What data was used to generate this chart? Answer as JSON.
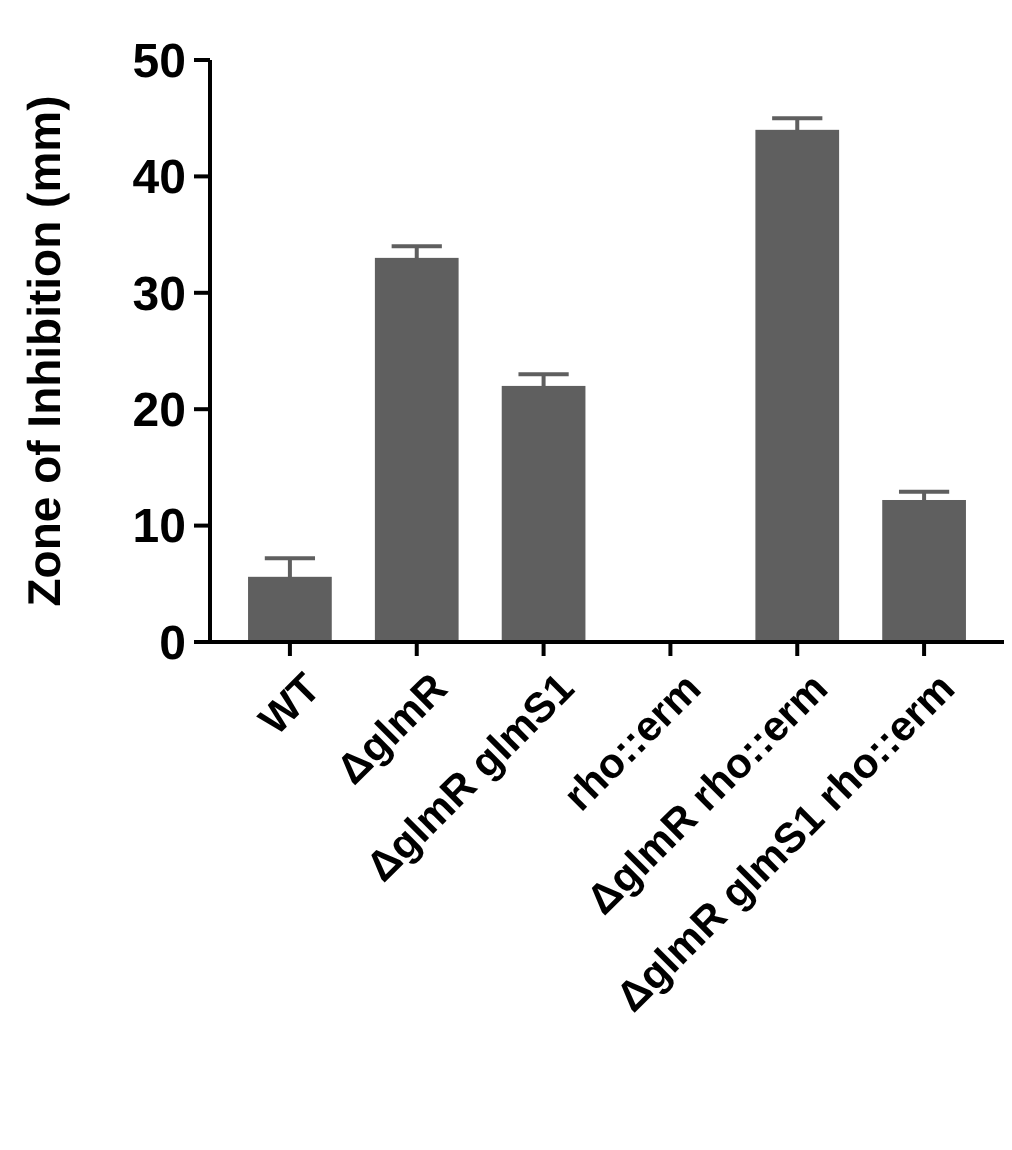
{
  "chart_data": {
    "type": "bar",
    "ylabel": "Zone of Inhibition (mm)",
    "categories": [
      "WT",
      "ΔglmR",
      "ΔglmR glmS1",
      "rho::erm",
      "ΔglmR rho::erm",
      "ΔglmR glmS1 rho::erm"
    ],
    "values": [
      5.6,
      33,
      22,
      0,
      44,
      12.2
    ],
    "errors": [
      1.6,
      1,
      1,
      null,
      1,
      0.7
    ],
    "color": "#5f5f5f",
    "ylim": [
      0,
      50
    ],
    "yticks": [
      0,
      10,
      20,
      30,
      40,
      50
    ],
    "grid": false
  }
}
